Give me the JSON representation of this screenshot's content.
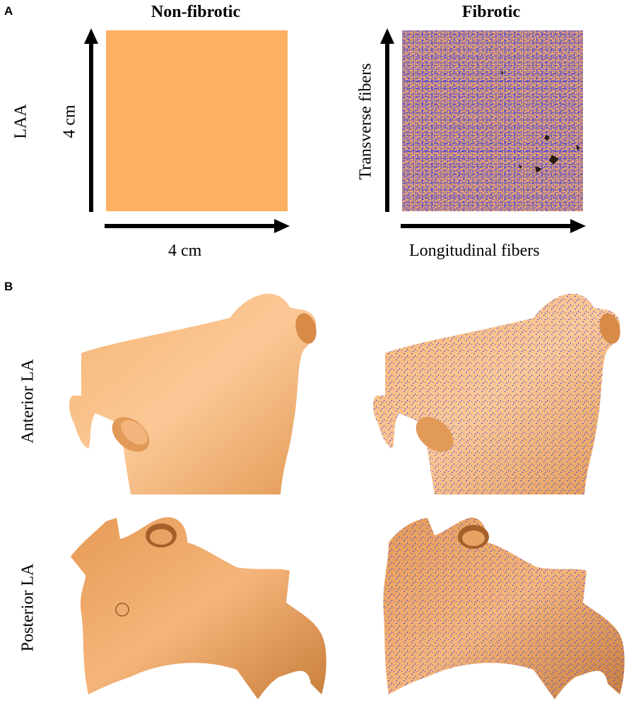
{
  "panel_a": {
    "letter": "A",
    "col_left_title": "Non-fibrotic",
    "col_right_title": "Fibrotic",
    "row_label": "LAA",
    "vertical_size_label": "4 cm",
    "horizontal_size_label": "4 cm",
    "transverse_label": "Transverse fibers",
    "longitudinal_label": "Longitudinal fibers"
  },
  "panel_b": {
    "letter": "B",
    "row1_label": "Anterior LA",
    "row2_label": "Posterior LA"
  },
  "colors": {
    "tissue": "#fbb062",
    "fibrosis": "#4a4ae8",
    "atrium_light": "#f9c48e",
    "atrium_dark": "#c8803e"
  }
}
